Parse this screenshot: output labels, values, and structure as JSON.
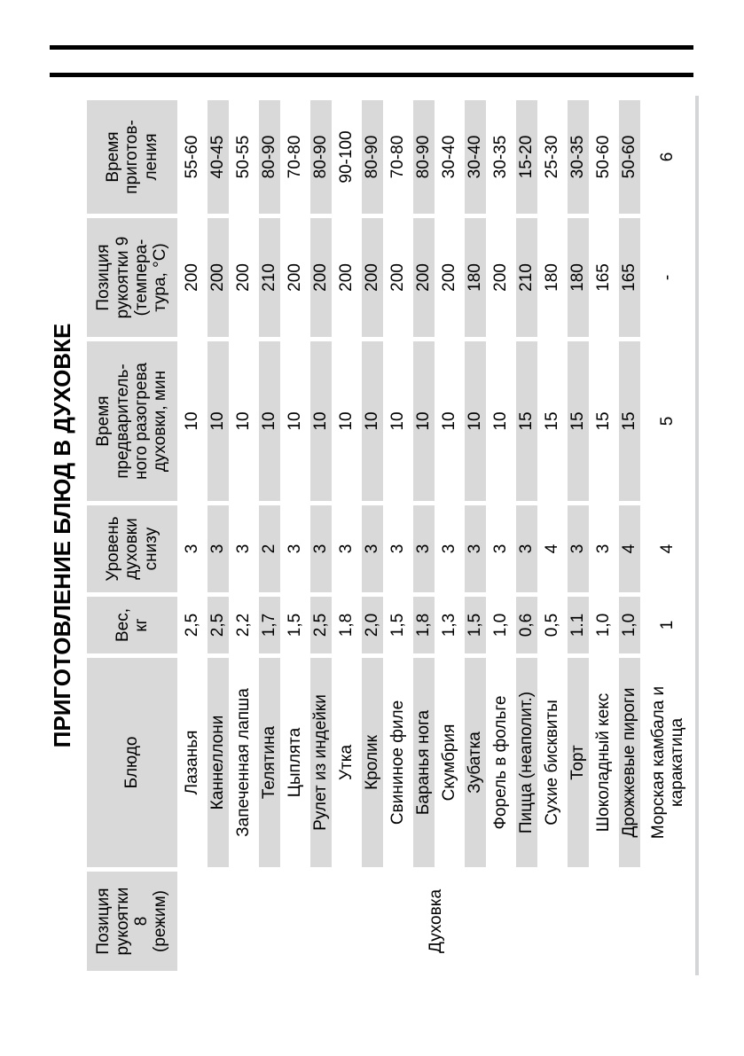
{
  "page": {
    "title": "ПРИГОТОВЛЕНИЕ БЛЮД В ДУХОВКЕ"
  },
  "colors": {
    "page_bg": "#ffffff",
    "text": "#000000",
    "header_rules": "#000000",
    "cell_gray": "#d9d9d9",
    "table_edge_rule": "#d3d5d6"
  },
  "table": {
    "headers": {
      "mode": "Позиция\nрукоятки\n8\n(режим)",
      "dish": "Блюдо",
      "weight": "Вес,\nкг",
      "level": "Уровень\nдуховки\nснизу",
      "preheat": "Время\nпредваритель-\nного разогрева\nдуховки, мин",
      "knob9": "Позиция\nрукоятки 9\n(темпера-\nтура, °C)",
      "time": "Время\nприготов-\nления"
    },
    "mode_value": "Духовка",
    "rows": [
      {
        "dish": "Лазанья",
        "weight": "2,5",
        "level": "3",
        "preheat": "10",
        "temp": "200",
        "time": "55-60"
      },
      {
        "dish": "Каннеллони",
        "weight": "2,5",
        "level": "3",
        "preheat": "10",
        "temp": "200",
        "time": "40-45"
      },
      {
        "dish": "Запеченная лапша",
        "weight": "2,2",
        "level": "3",
        "preheat": "10",
        "temp": "200",
        "time": "50-55"
      },
      {
        "dish": "Телятина",
        "weight": "1,7",
        "level": "2",
        "preheat": "10",
        "temp": "210",
        "time": "80-90"
      },
      {
        "dish": "Цыплята",
        "weight": "1,5",
        "level": "3",
        "preheat": "10",
        "temp": "200",
        "time": "70-80"
      },
      {
        "dish": "Рулет из индейки",
        "weight": "2,5",
        "level": "3",
        "preheat": "10",
        "temp": "200",
        "time": "80-90"
      },
      {
        "dish": "Утка",
        "weight": "1,8",
        "level": "3",
        "preheat": "10",
        "temp": "200",
        "time": "90-100"
      },
      {
        "dish": "Кролик",
        "weight": "2,0",
        "level": "3",
        "preheat": "10",
        "temp": "200",
        "time": "80-90"
      },
      {
        "dish": "Свининое филе",
        "weight": "1,5",
        "level": "3",
        "preheat": "10",
        "temp": "200",
        "time": "70-80"
      },
      {
        "dish": "Баранья нога",
        "weight": "1,8",
        "level": "3",
        "preheat": "10",
        "temp": "200",
        "time": "80-90"
      },
      {
        "dish": "Скумбрия",
        "weight": "1,3",
        "level": "3",
        "preheat": "10",
        "temp": "200",
        "time": "30-40"
      },
      {
        "dish": "Зубатка",
        "weight": "1,5",
        "level": "3",
        "preheat": "10",
        "temp": "180",
        "time": "30-40"
      },
      {
        "dish": "Форель в фольге",
        "weight": "1,0",
        "level": "3",
        "preheat": "10",
        "temp": "200",
        "time": "30-35"
      },
      {
        "dish": "Пицца (неаполит.)",
        "weight": "0,6",
        "level": "3",
        "preheat": "15",
        "temp": "210",
        "time": "15-20"
      },
      {
        "dish": "Сухие бисквиты",
        "weight": "0,5",
        "level": "4",
        "preheat": "15",
        "temp": "180",
        "time": "25-30"
      },
      {
        "dish": "Торт",
        "weight": "1.1",
        "level": "3",
        "preheat": "15",
        "temp": "180",
        "time": "30-35"
      },
      {
        "dish": "Шоколадный кекс",
        "weight": "1,0",
        "level": "3",
        "preheat": "15",
        "temp": "165",
        "time": "50-60"
      },
      {
        "dish": "Дрожжевые пироги",
        "weight": "1,0",
        "level": "4",
        "preheat": "15",
        "temp": "165",
        "time": "50-60"
      },
      {
        "dish": "Морская камбала и каракатица",
        "weight": "1",
        "level": "4",
        "preheat": "5",
        "temp": "-",
        "time": "6"
      }
    ]
  }
}
